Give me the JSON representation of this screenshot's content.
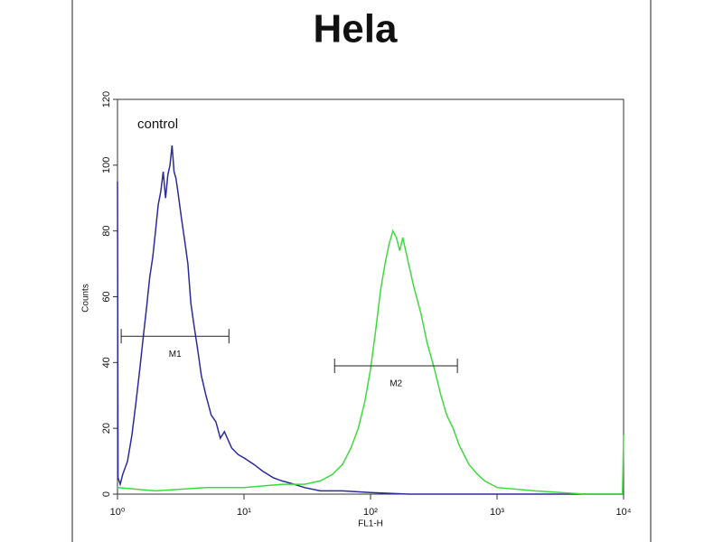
{
  "chart_data": {
    "type": "line",
    "title": "Hela",
    "xlabel": "FL1-H",
    "ylabel": "Counts",
    "xscale": "log",
    "xlim": [
      1,
      10000
    ],
    "ylim": [
      0,
      120
    ],
    "xticks": [
      {
        "value": 1,
        "label": "10⁰"
      },
      {
        "value": 10,
        "label": "10¹"
      },
      {
        "value": 100,
        "label": "10²"
      },
      {
        "value": 1000,
        "label": "10³"
      },
      {
        "value": 10000,
        "label": "10⁴"
      }
    ],
    "yticks": [
      0,
      20,
      40,
      60,
      80,
      100,
      120
    ],
    "series": [
      {
        "name": "control",
        "color": "#2b2b9c",
        "x": [
          1.0,
          1.01,
          1.05,
          1.1,
          1.2,
          1.3,
          1.4,
          1.5,
          1.6,
          1.7,
          1.8,
          1.9,
          2.0,
          2.1,
          2.2,
          2.3,
          2.4,
          2.5,
          2.6,
          2.7,
          2.8,
          2.9,
          3.0,
          3.2,
          3.4,
          3.6,
          3.8,
          4.0,
          4.3,
          4.6,
          5.0,
          5.5,
          6.0,
          6.5,
          7.0,
          8.0,
          9.0,
          10,
          12,
          14,
          17,
          20,
          25,
          30,
          40,
          60,
          100,
          200,
          1000,
          10000
        ],
        "values": [
          95,
          5,
          3,
          6,
          10,
          18,
          28,
          38,
          48,
          57,
          66,
          72,
          80,
          88,
          92,
          98,
          90,
          97,
          100,
          106,
          98,
          96,
          92,
          84,
          77,
          70,
          58,
          52,
          44,
          36,
          30,
          24,
          22,
          17,
          19,
          14,
          12,
          11,
          9,
          7,
          5,
          4,
          3,
          2,
          1,
          1,
          0.5,
          0,
          0,
          0
        ]
      },
      {
        "color": "#3cdc3c",
        "x": [
          1,
          2,
          5,
          10,
          20,
          30,
          40,
          50,
          60,
          70,
          80,
          90,
          100,
          110,
          120,
          130,
          140,
          150,
          160,
          170,
          180,
          200,
          220,
          250,
          280,
          320,
          360,
          400,
          450,
          500,
          600,
          700,
          800,
          1000,
          2000,
          5000,
          9800,
          10000
        ],
        "values": [
          2,
          1,
          2,
          2,
          3,
          3,
          4,
          6,
          9,
          14,
          20,
          28,
          38,
          50,
          62,
          70,
          76,
          80,
          78,
          74,
          78,
          70,
          63,
          55,
          46,
          38,
          30,
          24,
          20,
          15,
          9,
          6,
          4,
          2,
          1,
          0,
          0,
          18
        ]
      }
    ],
    "markers": [
      {
        "label": "M1",
        "x": [
          1.07,
          7.6
        ],
        "y": 48
      },
      {
        "label": "M2",
        "x": [
          52,
          486
        ],
        "y": 39
      }
    ]
  }
}
